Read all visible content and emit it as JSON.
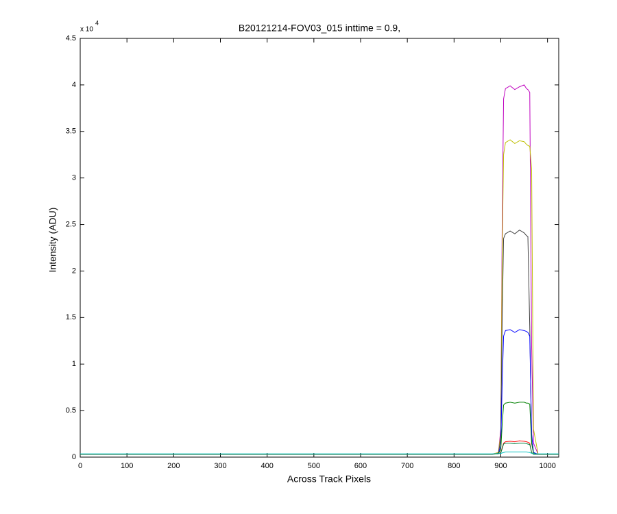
{
  "chart_data": {
    "type": "line",
    "title": "B20121214-FOV03_015 inttime = 0.9,",
    "x_label": "Across Track Pixels",
    "y_label": "Intensity (ADU)",
    "y_multiplier_base": "x 10",
    "y_multiplier_exp": "4",
    "xlim": [
      0,
      1024
    ],
    "xticks": [
      0,
      100,
      200,
      300,
      400,
      500,
      600,
      700,
      800,
      900,
      1000
    ],
    "ylim": [
      0,
      45000
    ],
    "yticks": [
      0,
      {
        "value": 5000,
        "label": "0.5"
      },
      {
        "value": 10000,
        "label": "1"
      },
      {
        "value": 15000,
        "label": "1.5"
      },
      {
        "value": 20000,
        "label": "2"
      },
      {
        "value": 25000,
        "label": "2.5"
      },
      {
        "value": 30000,
        "label": "3"
      },
      {
        "value": 35000,
        "label": "3.5"
      },
      {
        "value": 40000,
        "label": "4"
      },
      {
        "value": 45000,
        "label": "4.5"
      }
    ],
    "grid": false,
    "x": [
      0,
      100,
      200,
      300,
      400,
      500,
      600,
      700,
      800,
      880,
      895,
      900,
      903,
      906,
      910,
      920,
      930,
      940,
      950,
      955,
      958,
      962,
      966,
      970,
      980,
      1024
    ],
    "series": [
      {
        "color": "#bf00bf",
        "values": [
          300,
          300,
          300,
          300,
          300,
          300,
          300,
          300,
          300,
          300,
          500,
          3000,
          25000,
          38500,
          39600,
          39900,
          39500,
          39800,
          40000,
          39600,
          39500,
          39200,
          12000,
          1500,
          300,
          300
        ]
      },
      {
        "color": "#bfbf00",
        "values": [
          300,
          300,
          300,
          300,
          300,
          300,
          300,
          300,
          300,
          300,
          500,
          2500,
          22000,
          32500,
          33800,
          34100,
          33700,
          34000,
          33900,
          33600,
          33500,
          33400,
          31000,
          3000,
          300,
          300
        ]
      },
      {
        "color": "#404040",
        "values": [
          300,
          300,
          300,
          300,
          300,
          300,
          300,
          300,
          300,
          300,
          400,
          2000,
          15000,
          23500,
          24000,
          24300,
          24000,
          24400,
          24100,
          23800,
          23700,
          14000,
          1500,
          500,
          300,
          300
        ]
      },
      {
        "color": "#0000ff",
        "values": [
          300,
          300,
          300,
          300,
          300,
          300,
          300,
          300,
          300,
          300,
          400,
          1200,
          8000,
          13000,
          13600,
          13700,
          13400,
          13700,
          13600,
          13500,
          13400,
          13000,
          2500,
          500,
          300,
          300
        ]
      },
      {
        "color": "#008000",
        "values": [
          300,
          300,
          300,
          300,
          300,
          300,
          300,
          300,
          300,
          300,
          400,
          800,
          3500,
          5600,
          5800,
          5900,
          5800,
          5900,
          5900,
          5800,
          5800,
          5700,
          1500,
          400,
          300,
          300
        ]
      },
      {
        "color": "#ff0000",
        "values": [
          300,
          300,
          300,
          300,
          300,
          300,
          300,
          300,
          300,
          300,
          350,
          500,
          1000,
          1500,
          1650,
          1700,
          1650,
          1750,
          1700,
          1650,
          1600,
          1500,
          500,
          300,
          300,
          300
        ]
      },
      {
        "color": "#007f3f",
        "values": [
          300,
          300,
          300,
          300,
          300,
          300,
          300,
          300,
          300,
          300,
          350,
          450,
          900,
          1400,
          1500,
          1500,
          1450,
          1500,
          1500,
          1450,
          1400,
          1350,
          500,
          300,
          300,
          300
        ]
      },
      {
        "color": "#00bfbf",
        "values": [
          350,
          350,
          350,
          350,
          350,
          350,
          350,
          350,
          350,
          350,
          380,
          400,
          450,
          500,
          550,
          550,
          550,
          550,
          550,
          550,
          520,
          500,
          400,
          350,
          350,
          350
        ]
      }
    ]
  }
}
